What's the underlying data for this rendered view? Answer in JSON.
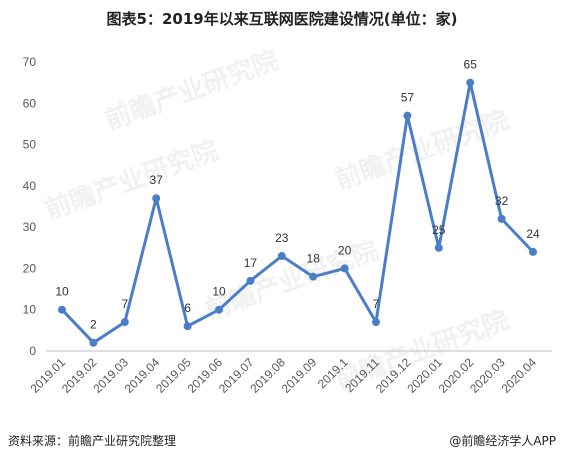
{
  "title": "图表5：2019年以来互联网医院建设情况(单位：家)",
  "source_left": "资料来源：前瞻产业研究院整理",
  "source_right": "@前瞻经济学人APP",
  "watermark": "前瞻产业研究院",
  "colors": {
    "line": "#4a7ec8",
    "axis": "#bfbfbf",
    "text": "#595959"
  },
  "chart_data": {
    "type": "line",
    "title": "图表5：2019年以来互联网医院建设情况(单位：家)",
    "xlabel": "",
    "ylabel": "",
    "ylim": [
      0,
      70
    ],
    "yticks": [
      0,
      10,
      20,
      30,
      40,
      50,
      60,
      70
    ],
    "grid": false,
    "categories": [
      "2019.01",
      "2019.02",
      "2019.03",
      "2019.04",
      "2019.05",
      "2019.06",
      "2019.07",
      "2019.08",
      "2019.09",
      "2019.1",
      "2019.11",
      "2019.12",
      "2020.01",
      "2020.02",
      "2020.03",
      "2020.04"
    ],
    "values": [
      10,
      2,
      7,
      37,
      6,
      10,
      17,
      23,
      18,
      20,
      7,
      57,
      25,
      65,
      32,
      24
    ]
  }
}
